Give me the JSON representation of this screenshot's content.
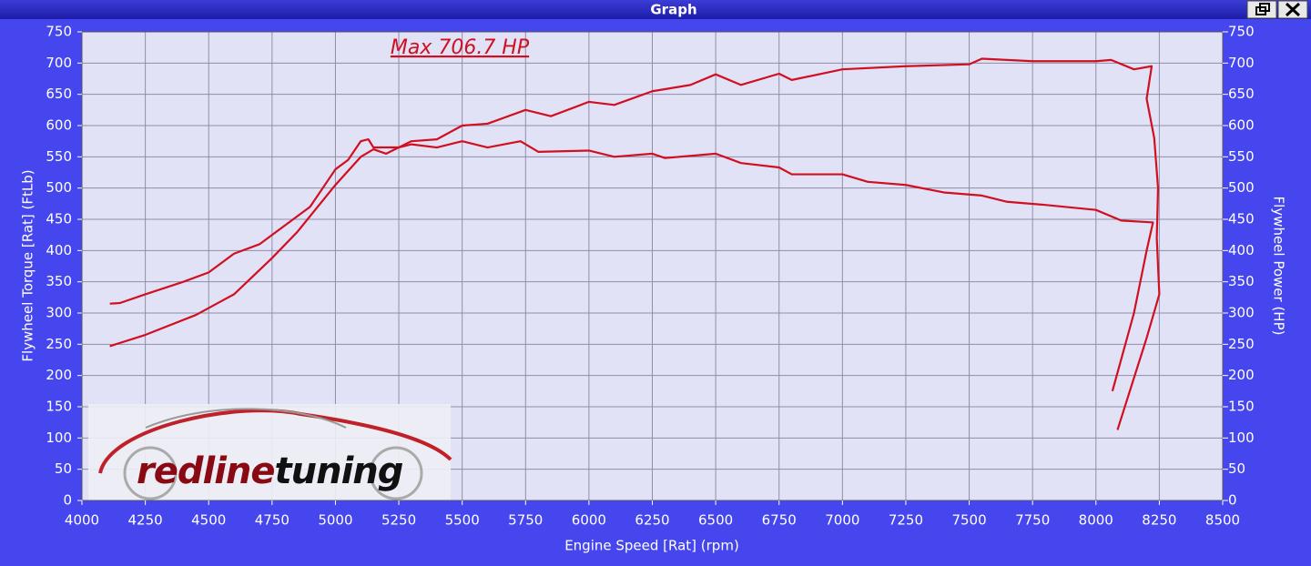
{
  "window": {
    "title": "Graph"
  },
  "chart_data": {
    "type": "line",
    "annotation": "Max 706.7 HP",
    "logo": {
      "part1": "redline",
      "part2": "tuning"
    },
    "x_label": "Engine Speed [Rat] (rpm)",
    "y_label": "Flywheel Torque [Rat] (FtLb)",
    "y2_label": "Flywheel Power (HP)",
    "xlim": [
      4000,
      8500
    ],
    "xticks": [
      4000,
      4250,
      4500,
      4750,
      5000,
      5250,
      5500,
      5750,
      6000,
      6250,
      6500,
      6750,
      7000,
      7250,
      7500,
      7750,
      8000,
      8250,
      8500
    ],
    "ylim": [
      0,
      750
    ],
    "yticks": [
      0,
      50,
      100,
      150,
      200,
      250,
      300,
      350,
      400,
      450,
      500,
      550,
      600,
      650,
      700,
      750
    ],
    "y2lim": [
      0,
      750
    ],
    "y2ticks": [
      0,
      50,
      100,
      150,
      200,
      250,
      300,
      350,
      400,
      450,
      500,
      550,
      600,
      650,
      700,
      750
    ],
    "grid": true,
    "series": [
      {
        "color": "#d01020",
        "x": [
          4110,
          4150,
          4250,
          4400,
          4500,
          4600,
          4700,
          4800,
          4900,
          5000,
          5050,
          5100,
          5130,
          5150,
          5250,
          5300,
          5400,
          5500,
          5600,
          5730,
          5800,
          6000,
          6100,
          6250,
          6300,
          6500,
          6600,
          6750,
          6800,
          7000,
          7100,
          7250,
          7400,
          7550,
          7650,
          7800,
          8000,
          8100,
          8225,
          8200,
          8150,
          8065
        ],
        "values": [
          315,
          316,
          330,
          350,
          365,
          395,
          410,
          440,
          470,
          530,
          545,
          575,
          578,
          565,
          565,
          570,
          565,
          575,
          565,
          575,
          558,
          560,
          550,
          555,
          548,
          555,
          540,
          533,
          522,
          522,
          510,
          505,
          493,
          488,
          478,
          473,
          465,
          448,
          445,
          400,
          300,
          175
        ]
      },
      {
        "color": "#d01020",
        "axis": "y2",
        "x": [
          4110,
          4250,
          4450,
          4600,
          4750,
          4850,
          5000,
          5100,
          5150,
          5200,
          5250,
          5300,
          5400,
          5500,
          5600,
          5750,
          5850,
          6000,
          6100,
          6250,
          6400,
          6500,
          6600,
          6750,
          6800,
          7000,
          7250,
          7500,
          7550,
          7750,
          8000,
          8060,
          8150,
          8220,
          8200,
          8230,
          8245,
          8240,
          8250,
          8200,
          8085
        ],
        "values": [
          247,
          265,
          297,
          330,
          388,
          430,
          505,
          550,
          562,
          555,
          565,
          575,
          578,
          600,
          603,
          625,
          615,
          638,
          633,
          655,
          665,
          682,
          665,
          683,
          673,
          690,
          695,
          698,
          707,
          703,
          703,
          705,
          690,
          695,
          643,
          580,
          500,
          420,
          330,
          260,
          113
        ]
      }
    ]
  }
}
